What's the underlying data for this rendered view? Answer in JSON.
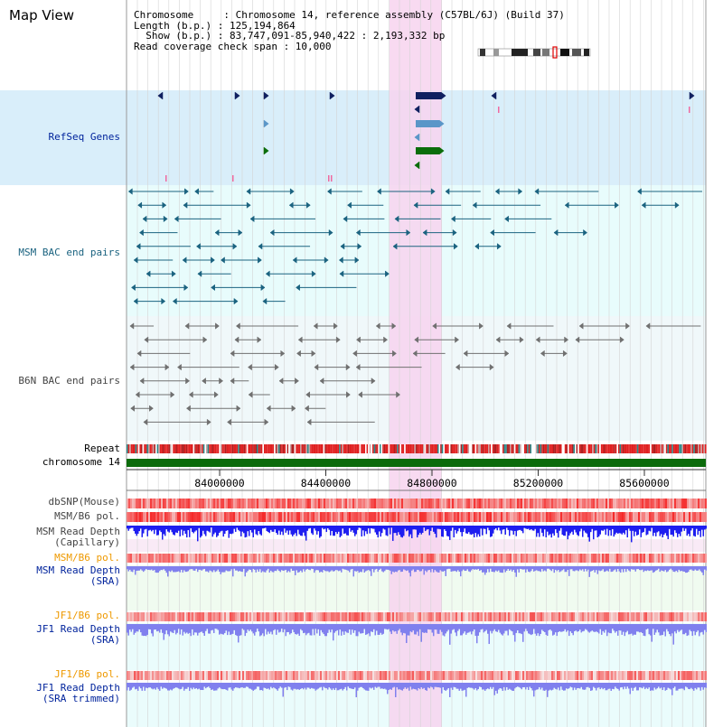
{
  "app_title": "Map View",
  "info": {
    "chromosome": "Chromosome     : Chromosome 14, reference assembly (C57BL/6J) (Build 37)",
    "length": "Length (b.p.) : 125,194,864",
    "show": "  Show (b.p.) : 83,747,091-85,940,422 : 2,193,332 bp",
    "coverage": "Read coverage check span : 10,000"
  },
  "tracks": {
    "refseq": "RefSeq Genes",
    "msm_bac": "MSM BAC end pairs",
    "b6n_bac": "B6N BAC end pairs",
    "repeat": "Repeat",
    "chromosome": "chromosome 14",
    "dbsnp": "dbSNP(Mouse)",
    "msm_b6_pol": "MSM/B6 pol.",
    "msm_depth_cap": "MSM Read Depth\n(Capillary)",
    "msm_b6_pol2": "MSM/B6 pol.",
    "msm_depth_sra": "MSM Read Depth\n(SRA)",
    "jf1_b6_pol": "JF1/B6 pol.",
    "jf1_depth_sra": "JF1 Read Depth\n(SRA)",
    "jf1_b6_pol2": "JF1/B6 pol.",
    "jf1_depth_trim": "JF1 Read Depth\n(SRA trimmed)"
  },
  "axis": {
    "ticks": [
      "84000000",
      "84400000",
      "84800000",
      "85200000",
      "85600000"
    ]
  },
  "colors": {
    "highlight": "#f7d4ef",
    "gene_track_bg": "#d9eefa",
    "bac_bg": "#e8fcfc",
    "msm_bac_color": "#1b6380",
    "b6n_bac_color": "#707070",
    "refseq_navy": "#102060",
    "refseq_light": "#5a96c8",
    "refseq_green": "#0a6d0a",
    "chromosome_bar": "#0b6b0b",
    "depth_blue": "#1e1ef0",
    "depth_periwinkle": "#8080ee"
  }
}
